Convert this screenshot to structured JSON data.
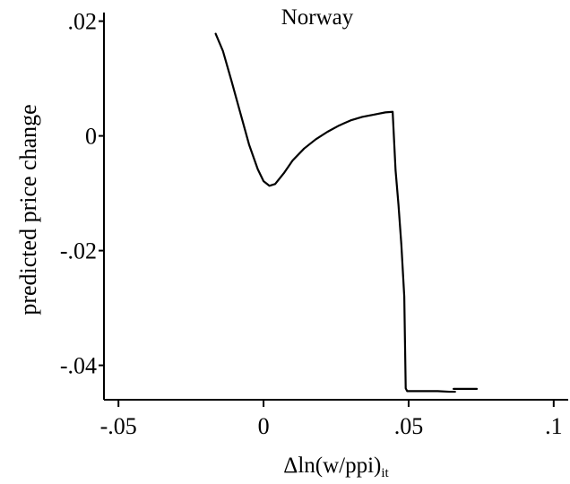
{
  "chart_data": {
    "type": "line",
    "title": "Norway",
    "xlabel": "Δln(w/ppi)",
    "xlabel_sub": "it",
    "ylabel": "predicted price change",
    "xlim": [
      -0.055,
      0.105
    ],
    "ylim": [
      -0.046,
      0.0215
    ],
    "x_ticks": [
      {
        "value": -0.05,
        "label": "-.05"
      },
      {
        "value": 0,
        "label": "0"
      },
      {
        "value": 0.05,
        "label": ".05"
      },
      {
        "value": 0.1,
        "label": ".1"
      }
    ],
    "y_ticks": [
      {
        "value": 0.02,
        "label": ".02"
      },
      {
        "value": 0,
        "label": "0"
      },
      {
        "value": -0.02,
        "label": "-.02"
      },
      {
        "value": -0.04,
        "label": "-.04"
      }
    ],
    "grid": false,
    "series": [
      {
        "x": [
          -0.0165,
          -0.014,
          -0.011,
          -0.008,
          -0.005,
          -0.002,
          0.0,
          0.002,
          0.004,
          0.007,
          0.01,
          0.014,
          0.018,
          0.022,
          0.026,
          0.03,
          0.034,
          0.038,
          0.042,
          0.0445,
          0.0455,
          0.0465,
          0.0475,
          0.0485,
          0.049,
          0.0495,
          0.052,
          0.056,
          0.06,
          0.064,
          0.066
        ],
        "y": [
          0.0178,
          0.0148,
          0.0095,
          0.004,
          -0.0015,
          -0.0058,
          -0.0079,
          -0.0087,
          -0.0084,
          -0.0065,
          -0.0043,
          -0.0022,
          -0.0006,
          0.0007,
          0.0018,
          0.0027,
          0.0033,
          0.0037,
          0.0041,
          0.0042,
          -0.006,
          -0.012,
          -0.019,
          -0.028,
          -0.044,
          -0.0445,
          -0.0445,
          -0.0445,
          -0.0445,
          -0.0446,
          -0.0446
        ]
      },
      {
        "x": [
          0.0655,
          0.0735
        ],
        "y": [
          -0.0441,
          -0.0441
        ]
      }
    ]
  }
}
